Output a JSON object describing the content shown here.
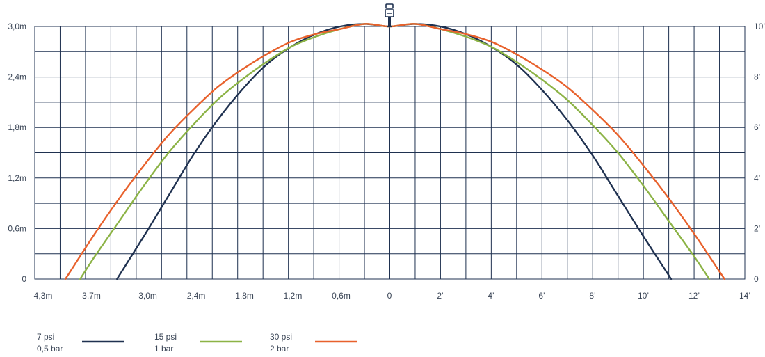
{
  "chart_data": {
    "type": "line",
    "title": "",
    "xlabel": "",
    "ylabel": "",
    "grid": true,
    "x_axis": {
      "left_scale_unit": "m",
      "left_ticks": [
        "4,3m",
        "3,7m",
        "3,0m",
        "2,4m",
        "1,8m",
        "1,2m",
        "0,6m",
        "0"
      ],
      "left_tick_values_m": [
        4.3,
        3.7,
        3.0,
        2.4,
        1.8,
        1.2,
        0.6,
        0
      ],
      "right_ticks": [
        "2’",
        "4’",
        "6’",
        "8’",
        "10’",
        "12’",
        "14’"
      ],
      "right_tick_values_ft": [
        2,
        4,
        6,
        8,
        10,
        12,
        14
      ]
    },
    "y_axis_left": {
      "ticks": [
        "0",
        "0,6m",
        "1,2m",
        "1,8m",
        "2,4m",
        "3,0m"
      ],
      "values_m": [
        0,
        0.6,
        1.2,
        1.8,
        2.4,
        3.0
      ],
      "ylim": [
        0,
        3.0
      ]
    },
    "y_axis_right": {
      "ticks": [
        "0",
        "2’",
        "4’",
        "6’",
        "8’",
        "10’"
      ],
      "values_ft": [
        0,
        2,
        4,
        6,
        8,
        10
      ],
      "ylim": [
        0,
        10
      ]
    },
    "series": [
      {
        "name": "7 psi / 0,5 bar",
        "color": "#1f3150",
        "x_ft": [
          -11.1,
          -10,
          -9,
          -8,
          -7,
          -6,
          -5,
          -4,
          -3,
          -2,
          -1,
          0,
          1,
          2,
          3,
          4,
          5,
          6,
          7,
          8,
          9,
          10,
          11.1
        ],
        "y_ft": [
          0,
          1.7,
          3.3,
          4.9,
          6.3,
          7.5,
          8.5,
          9.2,
          9.7,
          10.0,
          10.1,
          10.0,
          10.1,
          10.0,
          9.7,
          9.2,
          8.5,
          7.5,
          6.3,
          4.9,
          3.3,
          1.7,
          0
        ]
      },
      {
        "name": "15 psi / 1 bar",
        "color": "#8cb346",
        "x_ft": [
          -12.6,
          -12,
          -11,
          -10,
          -9,
          -8,
          -7,
          -6,
          -5,
          -4,
          -3,
          -2,
          -1,
          0,
          1,
          2,
          3,
          4,
          5,
          6,
          7,
          8,
          9,
          10,
          11,
          12,
          12.6
        ],
        "y_ft": [
          0,
          0.9,
          2.3,
          3.7,
          5.0,
          6.1,
          7.1,
          7.9,
          8.6,
          9.2,
          9.6,
          9.9,
          10.1,
          10.0,
          10.1,
          9.9,
          9.6,
          9.2,
          8.6,
          7.9,
          7.1,
          6.1,
          5.0,
          3.7,
          2.3,
          0.9,
          0
        ]
      },
      {
        "name": "30 psi / 2 bar",
        "color": "#e8612c",
        "x_ft": [
          -13.2,
          -13,
          -12,
          -11,
          -10,
          -9,
          -8,
          -7,
          -6,
          -5,
          -4,
          -3,
          -2,
          -1,
          0,
          1,
          2,
          3,
          4,
          5,
          6,
          7,
          8,
          9,
          10,
          11,
          12,
          13,
          13.2
        ],
        "y_ft": [
          0,
          0.3,
          1.8,
          3.2,
          4.5,
          5.7,
          6.7,
          7.6,
          8.3,
          8.9,
          9.4,
          9.7,
          9.9,
          10.1,
          10.0,
          10.1,
          9.9,
          9.7,
          9.4,
          8.9,
          8.3,
          7.6,
          6.7,
          5.7,
          4.5,
          3.2,
          1.8,
          0.3,
          0
        ]
      }
    ],
    "legend": {
      "placement": "bottom-left",
      "items": [
        {
          "line1": "7 psi",
          "line2": "0,5 bar",
          "color": "#1f3150"
        },
        {
          "line1": "15 psi",
          "line2": "1 bar",
          "color": "#8cb346"
        },
        {
          "line1": "30 psi",
          "line2": "2 bar",
          "color": "#e8612c"
        }
      ]
    },
    "colors": {
      "grid": "#1f3150",
      "text": "#3a4556",
      "background": "#ffffff"
    },
    "icon": "sprinkler-head-icon"
  }
}
